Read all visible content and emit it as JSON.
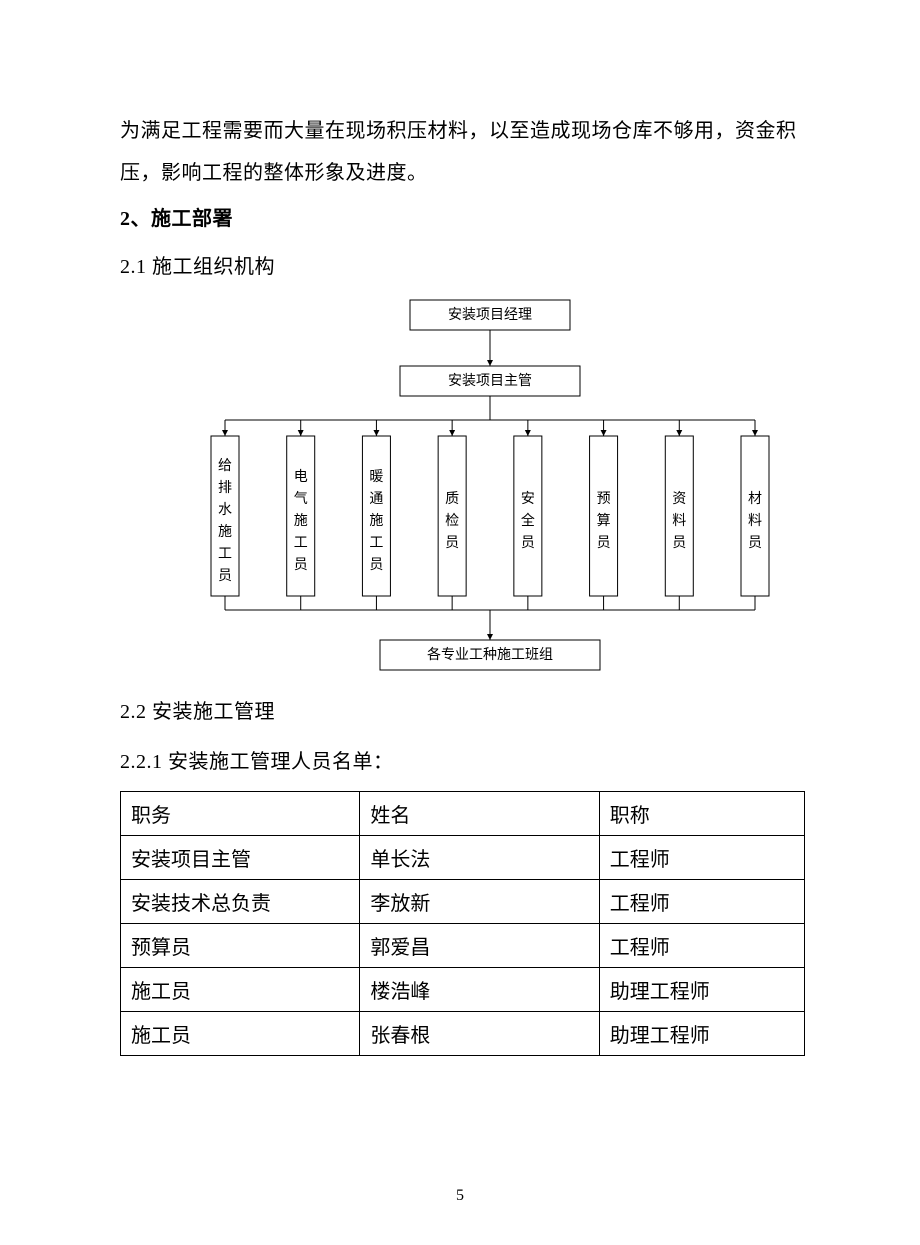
{
  "para1": "为满足工程需要而大量在现场积压材料，以至造成现场仓库不够用，资金积压，影响工程的整体形象及进度。",
  "sec2_heading": "2、施工部署",
  "sec21_heading": "2.1 施工组织机构",
  "sec22_heading": "2.2 安装施工管理",
  "sec221_heading": "2.2.1 安装施工管理人员名单：",
  "orgchart": {
    "top": "安装项目经理",
    "mid": "安装项目主管",
    "roles": [
      "给排水施工员",
      "电气施工员",
      "暖通施工员",
      "质检员",
      "安全员",
      "预算员",
      "资料员",
      "材料员"
    ],
    "bottom": "各专业工种施工班组",
    "box_stroke": "#000000",
    "box_fill": "#ffffff",
    "line_color": "#000000",
    "font_size_box": 14,
    "font_size_vert": 14
  },
  "table": {
    "columns": [
      "职务",
      "姓名",
      "职称"
    ],
    "rows": [
      [
        "安装项目主管",
        "单长法",
        "工程师"
      ],
      [
        "安装技术总负责",
        "李放新",
        "工程师"
      ],
      [
        "预算员",
        "郭爱昌",
        "工程师"
      ],
      [
        "施工员",
        "楼浩峰",
        "助理工程师"
      ],
      [
        "施工员",
        "张春根",
        "助理工程师"
      ]
    ],
    "col_widths_pct": [
      35,
      35,
      30
    ],
    "border_color": "#000000"
  },
  "page_number": "5"
}
